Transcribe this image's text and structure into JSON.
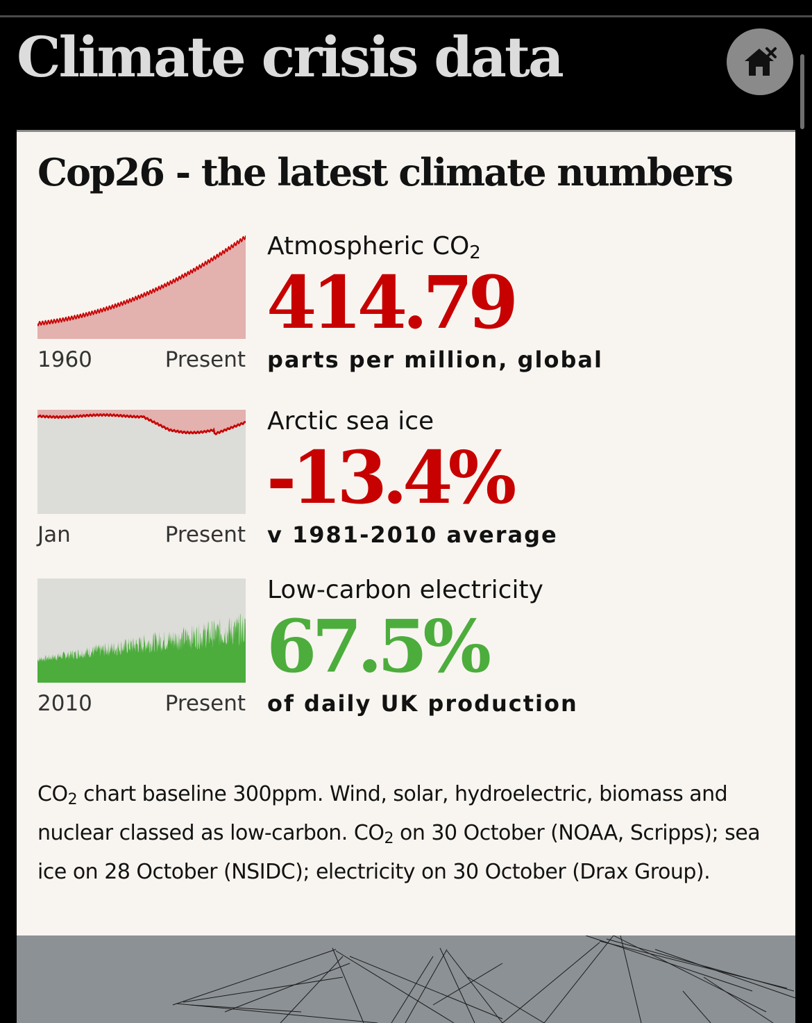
{
  "header": {
    "title": "Climate crisis data",
    "home_icon": "home-close-icon"
  },
  "card": {
    "title": "Cop26 - the latest climate numbers",
    "metrics": [
      {
        "id": "co2",
        "label_main": "Atmospheric CO",
        "label_sub": "2",
        "value": "414.79",
        "unit": "parts per million, global",
        "axis_start": "1960",
        "axis_end": "Present",
        "color": "#c70000",
        "fill": "#e3b1ae"
      },
      {
        "id": "sea-ice",
        "label_main": "Arctic sea ice",
        "value": "-13.4%",
        "unit": "v 1981-2010  average",
        "axis_start": "Jan",
        "axis_end": "Present",
        "color": "#c70000",
        "fill": "#e3b1ae",
        "background": "#dcdcd8"
      },
      {
        "id": "low-carbon",
        "label_main": "Low-carbon electricity",
        "value": "67.5%",
        "unit": "of daily UK production",
        "axis_start": "2010",
        "axis_end": "Present",
        "color": "#4cad3c",
        "background": "#dcdcd8"
      }
    ],
    "footnote": {
      "p1": "CO",
      "sub1": "2",
      "p2": " chart baseline 300ppm. Wind, solar, hydroelectric, biomass and nuclear classed as low-carbon. CO",
      "sub2": "2",
      "p3": " on 30 October (NOAA, Scripps); sea ice on 28 October (NSIDC); electricity on 30 October (Drax Group)."
    }
  },
  "banner": {
    "color": "#8c9195"
  }
}
